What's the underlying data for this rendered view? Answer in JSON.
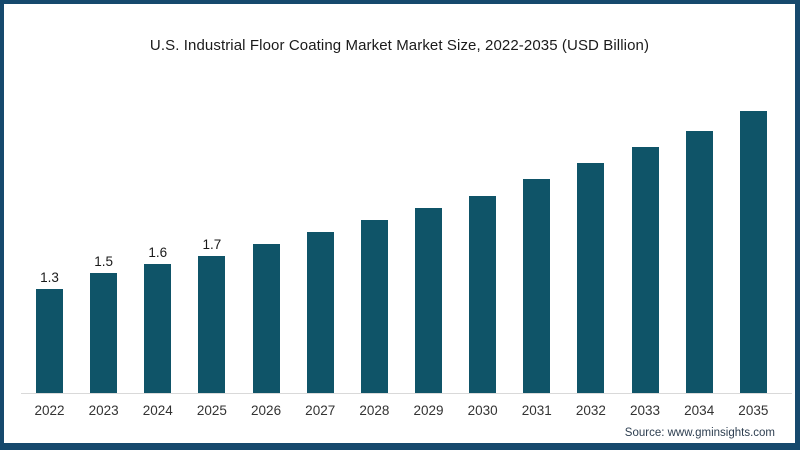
{
  "title": "U.S. Industrial Floor Coating Market Market Size, 2022-2035 (USD Billion)",
  "source": "Source: www.gminsights.com",
  "frame": {
    "border_color": "#16496D",
    "background": "#ffffff"
  },
  "chart_data": {
    "type": "bar",
    "title": "U.S. Industrial Floor Coating Market Market Size, 2022-2035 (USD Billion)",
    "xlabel": "",
    "ylabel": "",
    "categories": [
      "2022",
      "2023",
      "2024",
      "2025",
      "2026",
      "2027",
      "2028",
      "2029",
      "2030",
      "2031",
      "2032",
      "2033",
      "2034",
      "2035"
    ],
    "values": [
      1.3,
      1.5,
      1.6,
      1.7,
      1.85,
      2.0,
      2.15,
      2.3,
      2.45,
      2.65,
      2.85,
      3.05,
      3.25,
      3.5
    ],
    "data_labels": [
      "1.3",
      "1.5",
      "1.6",
      "1.7",
      "",
      "",
      "",
      "",
      "",
      "",
      "",
      "",
      "",
      ""
    ],
    "unit": "USD Billion",
    "bar_color": "#0F5468",
    "axis_color": "#d9d9d9",
    "ylim": [
      0,
      3.6
    ],
    "grid": false,
    "legend": false,
    "y_axis_visible": false,
    "source_label": "Source: www.gminsights.com"
  }
}
